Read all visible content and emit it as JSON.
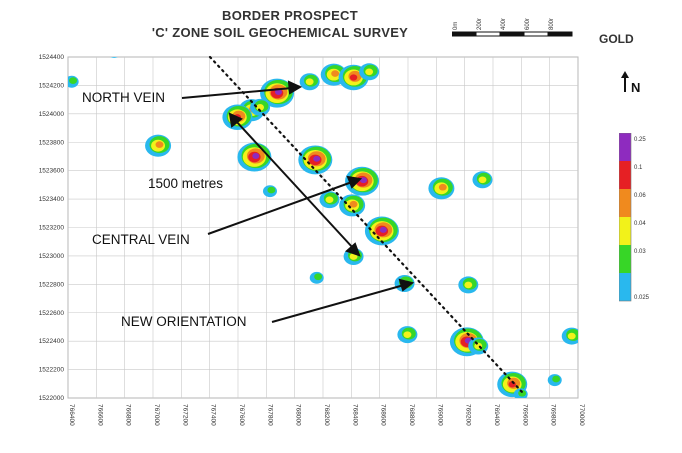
{
  "title_line1": "BORDER PROSPECT",
  "title_line2": "'C' ZONE SOIL GEOCHEMICAL SURVEY",
  "element_label": "GOLD",
  "north_label": "N",
  "scale_labels": [
    "0m",
    "200m",
    "400m",
    "600m",
    "800m"
  ],
  "legend": {
    "colors": [
      "#29b8ee",
      "#37d627",
      "#f2f21a",
      "#f08a1e",
      "#e62024",
      "#8e2bbf"
    ],
    "labels": [
      "0.025",
      "0.03",
      "0.04",
      "0.06",
      "0.1",
      "0.25"
    ]
  },
  "annotations": {
    "north_vein": "NORTH VEIN",
    "distance": "1500 metres",
    "central_vein": "CENTRAL VEIN",
    "new_orientation": "NEW ORIENTATION"
  },
  "axes": {
    "y_ticks": [
      "1524400",
      "1524200",
      "1524000",
      "1523800",
      "1523600",
      "1523400",
      "1523200",
      "1523000",
      "1522800",
      "1522600",
      "1522400",
      "1522200",
      "1522000"
    ],
    "x_ticks": [
      "766400",
      "766600",
      "766800",
      "767000",
      "767200",
      "767400",
      "767600",
      "767800",
      "768000",
      "768200",
      "768400",
      "768600",
      "768800",
      "769000",
      "769200",
      "769400",
      "769600",
      "769800",
      "770000"
    ]
  },
  "anomalies": [
    {
      "x": 767880,
      "y": 1524150,
      "level": 5
    },
    {
      "x": 767700,
      "y": 1524030,
      "level": 3
    },
    {
      "x": 767760,
      "y": 1524050,
      "level": 2
    },
    {
      "x": 768110,
      "y": 1524230,
      "level": 2
    },
    {
      "x": 768280,
      "y": 1524280,
      "level": 3
    },
    {
      "x": 768420,
      "y": 1524260,
      "level": 4
    },
    {
      "x": 768530,
      "y": 1524300,
      "level": 2
    },
    {
      "x": 767040,
      "y": 1523780,
      "level": 3
    },
    {
      "x": 767720,
      "y": 1523700,
      "level": 5
    },
    {
      "x": 768150,
      "y": 1523680,
      "level": 5
    },
    {
      "x": 768480,
      "y": 1523530,
      "level": 5
    },
    {
      "x": 768410,
      "y": 1523360,
      "level": 3
    },
    {
      "x": 768250,
      "y": 1523400,
      "level": 2
    },
    {
      "x": 767830,
      "y": 1523460,
      "level": 1
    },
    {
      "x": 768620,
      "y": 1523180,
      "level": 5
    },
    {
      "x": 768420,
      "y": 1523000,
      "level": 2
    },
    {
      "x": 768780,
      "y": 1522810,
      "level": 2
    },
    {
      "x": 769040,
      "y": 1523480,
      "level": 3
    },
    {
      "x": 769330,
      "y": 1523540,
      "level": 2
    },
    {
      "x": 769220,
      "y": 1522400,
      "level": 5
    },
    {
      "x": 769300,
      "y": 1522370,
      "level": 2
    },
    {
      "x": 768800,
      "y": 1522450,
      "level": 2
    },
    {
      "x": 769540,
      "y": 1522100,
      "level": 4
    },
    {
      "x": 769600,
      "y": 1522030,
      "level": 1
    },
    {
      "x": 769960,
      "y": 1522440,
      "level": 2
    },
    {
      "x": 769840,
      "y": 1522130,
      "level": 1
    },
    {
      "x": 769230,
      "y": 1522800,
      "level": 2
    },
    {
      "x": 768160,
      "y": 1522850,
      "level": 1
    },
    {
      "x": 767600,
      "y": 1523980,
      "level": 4
    },
    {
      "x": 766430,
      "y": 1524230,
      "level": 1
    },
    {
      "x": 766730,
      "y": 1524440,
      "level": 1
    }
  ]
}
